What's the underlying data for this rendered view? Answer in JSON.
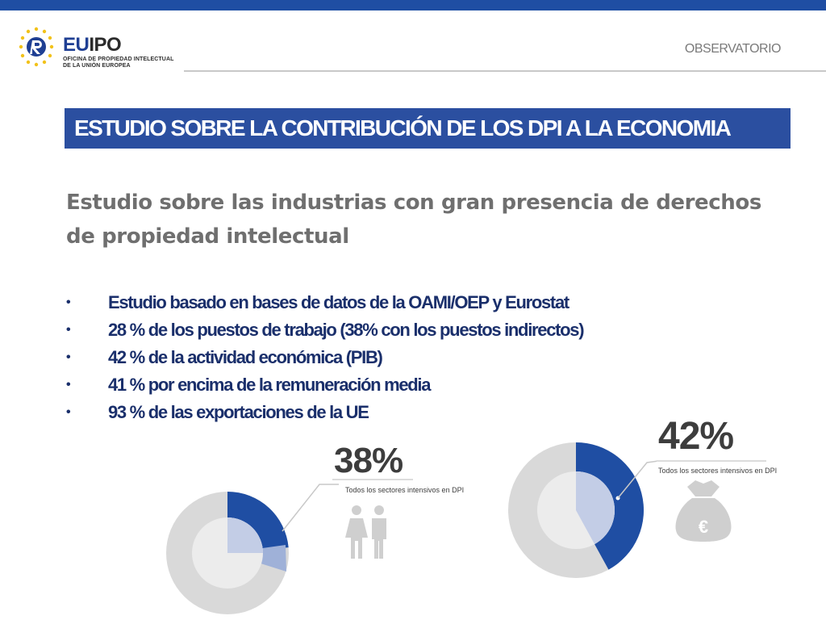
{
  "header": {
    "logo_brand_a": "EU",
    "logo_brand_b": "IPO",
    "logo_sub_line1": "OFICINA DE PROPIEDAD INTELECTUAL",
    "logo_sub_line2": "DE LA UNIÓN EUROPEA",
    "section": "OBSERVATORIO"
  },
  "title": "ESTUDIO SOBRE LA CONTRIBUCIÓN DE LOS DPI A LA ECONOMIA",
  "subtitle": "Estudio sobre las industrias con gran presencia de derechos de propiedad intelectual",
  "bullets": [
    "Estudio basado en bases de datos de la OAMI/OEP y Eurostat",
    "28 % de los puestos de trabajo  (38% con los puestos indirectos)",
    "42 % de la actividad económica (PIB)",
    "41 % por encima de la remuneración media",
    "93 % de las exportaciones de la UE"
  ],
  "figures": {
    "employment": {
      "percent": "38%",
      "caption": "Todos los sectores intensivos en DPI",
      "icon": "people-icon",
      "share": 0.38
    },
    "gdp": {
      "percent": "42%",
      "caption": "Todos los sectores intensivos en DPI",
      "icon": "euro-money-bag-icon",
      "share": 0.42,
      "icon_symbol": "€"
    }
  },
  "colors": {
    "brand_blue": "#1f4ea3",
    "title_band": "#2b4fa0",
    "bullet_text": "#1a2f6b",
    "donut_dark": "#1f4ea3",
    "donut_light": "#9fb1d8",
    "donut_gray": "#d9d9d9"
  }
}
